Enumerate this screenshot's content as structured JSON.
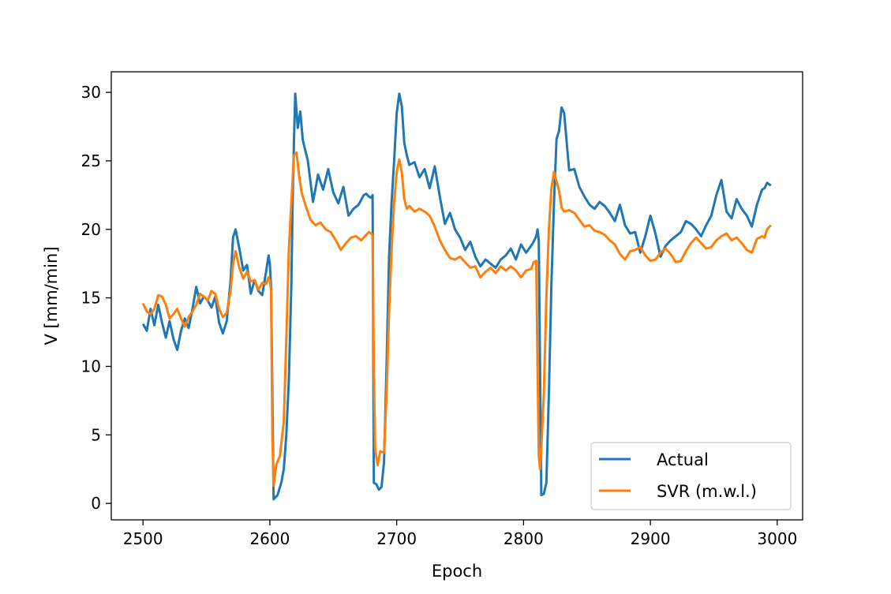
{
  "chart_data": {
    "type": "line",
    "title": "",
    "xlabel": "Epoch",
    "ylabel": "V [mm/min]",
    "xlim": [
      2475,
      3020
    ],
    "ylim": [
      -1.2,
      31.5
    ],
    "xticks": [
      2500,
      2600,
      2700,
      2800,
      2900,
      3000
    ],
    "yticks": [
      0,
      5,
      10,
      15,
      20,
      25,
      30
    ],
    "grid": false,
    "legend": {
      "placement": "lower-right"
    },
    "series": [
      {
        "name": "Actual",
        "color": "#1f77b4",
        "x": [
          2500,
          2503,
          2506,
          2509,
          2512,
          2515,
          2518,
          2521,
          2524,
          2527,
          2530,
          2533,
          2536,
          2539,
          2542,
          2545,
          2548,
          2551,
          2554,
          2557,
          2560,
          2563,
          2566,
          2569,
          2571,
          2573,
          2576,
          2579,
          2582,
          2585,
          2588,
          2591,
          2594,
          2597,
          2599,
          2600,
          2601,
          2603,
          2606,
          2609,
          2611,
          2613,
          2615,
          2617,
          2618,
          2619,
          2620,
          2622,
          2624,
          2626,
          2630,
          2634,
          2638,
          2642,
          2646,
          2650,
          2654,
          2658,
          2662,
          2666,
          2670,
          2674,
          2676,
          2678,
          2680,
          2681,
          2682,
          2684,
          2686,
          2688,
          2690,
          2692,
          2694,
          2696,
          2698,
          2700,
          2702,
          2704,
          2706,
          2708,
          2710,
          2714,
          2718,
          2722,
          2726,
          2730,
          2734,
          2738,
          2742,
          2746,
          2750,
          2754,
          2758,
          2762,
          2766,
          2770,
          2774,
          2778,
          2782,
          2786,
          2790,
          2794,
          2798,
          2802,
          2806,
          2808,
          2810,
          2811,
          2812,
          2814,
          2816,
          2818,
          2820,
          2822,
          2824,
          2826,
          2828,
          2830,
          2832,
          2836,
          2840,
          2844,
          2848,
          2852,
          2856,
          2860,
          2864,
          2868,
          2872,
          2876,
          2880,
          2884,
          2888,
          2892,
          2896,
          2900,
          2904,
          2908,
          2912,
          2916,
          2920,
          2924,
          2928,
          2932,
          2936,
          2940,
          2944,
          2948,
          2952,
          2956,
          2960,
          2964,
          2968,
          2972,
          2976,
          2980,
          2984,
          2988,
          2990,
          2992,
          2995
        ],
        "values": [
          13.1,
          12.6,
          14.2,
          13.0,
          14.5,
          13.2,
          12.1,
          13.3,
          12.0,
          11.2,
          12.6,
          13.5,
          12.8,
          14.2,
          15.8,
          14.6,
          15.1,
          14.8,
          14.3,
          15.1,
          13.2,
          12.4,
          13.3,
          16.2,
          19.4,
          20.0,
          18.6,
          17.0,
          17.4,
          15.3,
          16.3,
          15.5,
          15.2,
          16.9,
          18.1,
          17.5,
          15.8,
          0.3,
          0.6,
          1.5,
          2.5,
          5.0,
          9.0,
          16.0,
          22.0,
          26.5,
          29.9,
          27.4,
          28.6,
          26.5,
          25.0,
          22.0,
          24.0,
          22.9,
          24.4,
          22.7,
          21.9,
          23.1,
          21.0,
          21.5,
          21.8,
          22.5,
          22.6,
          22.4,
          22.3,
          22.5,
          1.5,
          1.4,
          1.0,
          1.2,
          3.0,
          10.0,
          18.0,
          22.0,
          25.0,
          28.5,
          29.9,
          29.0,
          26.3,
          25.4,
          24.7,
          24.9,
          23.8,
          24.4,
          23.0,
          24.6,
          22.4,
          20.4,
          21.2,
          20.0,
          19.4,
          18.5,
          19.1,
          18.0,
          17.3,
          17.8,
          17.5,
          17.2,
          17.8,
          18.1,
          18.6,
          17.8,
          18.9,
          18.3,
          18.8,
          19.1,
          19.5,
          20.0,
          19.2,
          0.6,
          0.7,
          1.5,
          8.0,
          16.0,
          22.0,
          26.6,
          27.2,
          28.9,
          28.5,
          24.3,
          24.4,
          23.1,
          22.4,
          21.8,
          21.5,
          22.0,
          21.7,
          21.2,
          20.6,
          21.8,
          20.3,
          19.7,
          19.8,
          18.3,
          19.5,
          21.0,
          19.7,
          18.0,
          18.8,
          19.2,
          19.5,
          19.8,
          20.6,
          20.4,
          20.0,
          19.5,
          20.3,
          21.0,
          22.5,
          23.6,
          21.3,
          20.8,
          22.2,
          21.5,
          21.0,
          20.2,
          21.8,
          22.9,
          23.0,
          23.4,
          23.2
        ]
      },
      {
        "name": "SVR (m.w.l.)",
        "color": "#ff7f0e",
        "x": [
          2500,
          2503,
          2506,
          2509,
          2512,
          2515,
          2518,
          2521,
          2524,
          2527,
          2530,
          2533,
          2536,
          2539,
          2542,
          2545,
          2548,
          2551,
          2554,
          2557,
          2560,
          2563,
          2566,
          2569,
          2571,
          2573,
          2576,
          2579,
          2582,
          2585,
          2588,
          2591,
          2594,
          2597,
          2599,
          2600,
          2601,
          2602,
          2603,
          2605,
          2608,
          2611,
          2613,
          2615,
          2617,
          2619,
          2621,
          2623,
          2625,
          2628,
          2632,
          2636,
          2640,
          2644,
          2648,
          2652,
          2656,
          2660,
          2664,
          2668,
          2672,
          2676,
          2678,
          2680,
          2681,
          2682,
          2683,
          2685,
          2687,
          2690,
          2692,
          2694,
          2696,
          2698,
          2700,
          2702,
          2704,
          2706,
          2708,
          2710,
          2714,
          2718,
          2722,
          2726,
          2730,
          2734,
          2738,
          2742,
          2746,
          2750,
          2754,
          2758,
          2762,
          2766,
          2770,
          2774,
          2778,
          2782,
          2786,
          2790,
          2794,
          2798,
          2802,
          2806,
          2808,
          2810,
          2811,
          2812,
          2813,
          2814,
          2816,
          2818,
          2820,
          2822,
          2824,
          2826,
          2828,
          2830,
          2832,
          2836,
          2840,
          2844,
          2848,
          2852,
          2856,
          2860,
          2864,
          2868,
          2872,
          2876,
          2880,
          2884,
          2888,
          2892,
          2896,
          2900,
          2904,
          2908,
          2912,
          2916,
          2920,
          2924,
          2928,
          2932,
          2936,
          2940,
          2944,
          2948,
          2952,
          2956,
          2960,
          2964,
          2968,
          2972,
          2976,
          2980,
          2984,
          2988,
          2990,
          2992,
          2995
        ],
        "values": [
          14.6,
          14.0,
          13.8,
          14.2,
          15.2,
          15.1,
          14.5,
          13.5,
          13.8,
          14.2,
          13.5,
          12.9,
          13.6,
          14.0,
          14.5,
          15.3,
          15.1,
          14.8,
          15.5,
          15.3,
          14.2,
          13.6,
          13.9,
          15.5,
          17.5,
          18.4,
          17.2,
          16.4,
          16.9,
          16.2,
          16.3,
          15.6,
          16.1,
          16.0,
          16.5,
          16.3,
          15.5,
          5.0,
          1.3,
          2.8,
          3.5,
          6.0,
          12.0,
          18.5,
          22.0,
          25.4,
          25.6,
          24.0,
          22.7,
          21.8,
          20.7,
          20.3,
          20.5,
          20.0,
          19.8,
          19.2,
          18.5,
          19.0,
          19.4,
          19.5,
          19.2,
          19.6,
          19.8,
          19.7,
          19.5,
          10.0,
          4.0,
          2.8,
          3.8,
          3.7,
          8.0,
          14.0,
          18.5,
          22.0,
          24.2,
          25.1,
          24.2,
          22.2,
          21.5,
          21.7,
          21.3,
          21.5,
          21.3,
          21.0,
          20.2,
          19.2,
          18.5,
          17.9,
          17.8,
          18.0,
          17.6,
          17.2,
          17.3,
          16.5,
          16.9,
          17.2,
          16.8,
          17.3,
          17.0,
          17.3,
          17.0,
          16.5,
          17.0,
          17.1,
          17.6,
          17.7,
          10.0,
          3.5,
          2.5,
          4.0,
          8.0,
          15.0,
          20.0,
          23.0,
          24.2,
          23.5,
          22.8,
          21.6,
          21.3,
          21.4,
          21.2,
          20.7,
          20.2,
          20.3,
          19.9,
          19.8,
          19.6,
          19.2,
          18.9,
          18.2,
          17.8,
          18.4,
          18.5,
          18.7,
          18.1,
          17.7,
          17.8,
          18.3,
          18.6,
          18.2,
          17.6,
          17.7,
          18.4,
          19.0,
          19.4,
          19.0,
          18.6,
          18.7,
          19.2,
          19.5,
          19.7,
          19.2,
          19.4,
          19.0,
          18.5,
          18.3,
          19.3,
          19.5,
          19.4,
          20.0,
          20.3
        ]
      }
    ]
  }
}
